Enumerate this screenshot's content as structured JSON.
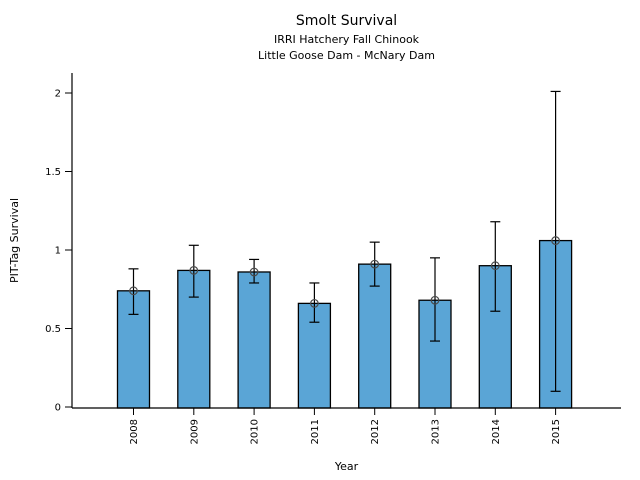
{
  "title": "Smolt Survival",
  "subtitle_line1": "IRRI Hatchery Fall Chinook",
  "subtitle_line2": "Little Goose Dam - McNary Dam",
  "chart_data": {
    "type": "bar",
    "title": "Smolt Survival",
    "subtitle": [
      "IRRI Hatchery Fall Chinook",
      "Little Goose Dam - McNary Dam"
    ],
    "categories": [
      "2008",
      "2009",
      "2010",
      "2011",
      "2012",
      "2013",
      "2014",
      "2015"
    ],
    "series": [
      {
        "name": "PIT-Tag Survival",
        "values": [
          0.74,
          0.87,
          0.86,
          0.66,
          0.91,
          0.68,
          0.9,
          1.06
        ],
        "error_low": [
          0.59,
          0.7,
          0.79,
          0.54,
          0.77,
          0.42,
          0.61,
          0.1
        ],
        "error_high": [
          0.88,
          1.03,
          0.94,
          0.79,
          1.05,
          0.95,
          1.18,
          2.01
        ]
      }
    ],
    "xlabel": "Year",
    "ylabel": "PIT-Tag Survival",
    "yticks": [
      0,
      0.5,
      1,
      1.5,
      2
    ],
    "ylim": [
      0,
      2.13
    ],
    "x_tick_rotation": -90,
    "grid": false,
    "legend": false,
    "bar_color": "#5AA5D6",
    "bar_edge_color": "#000000",
    "error_color": "#000000",
    "marker": "open-circle",
    "marker_color": "#4a4a4a",
    "axis_color": "#000000"
  }
}
